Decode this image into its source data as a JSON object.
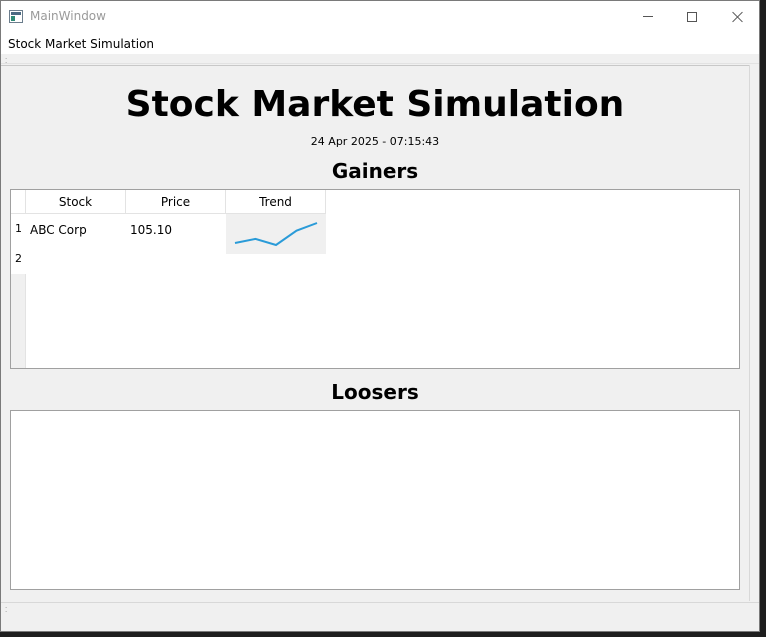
{
  "window": {
    "title": "MainWindow"
  },
  "menu": {
    "items": [
      "Stock Market Simulation"
    ]
  },
  "page": {
    "title": "Stock Market Simulation",
    "timestamp": "24 Apr 2025 - 07:15:43"
  },
  "gainers": {
    "heading": "Gainers",
    "columns": [
      "Stock",
      "Price",
      "Trend"
    ],
    "row_numbers": [
      "1",
      "2"
    ],
    "rows": [
      {
        "stock": "ABC Corp",
        "price": "105.10",
        "trend": [
          101.2,
          102.0,
          100.8,
          103.6,
          105.1
        ]
      }
    ],
    "trend_color": "#2a9bd8"
  },
  "losers": {
    "heading": "Loosers",
    "rows": []
  }
}
